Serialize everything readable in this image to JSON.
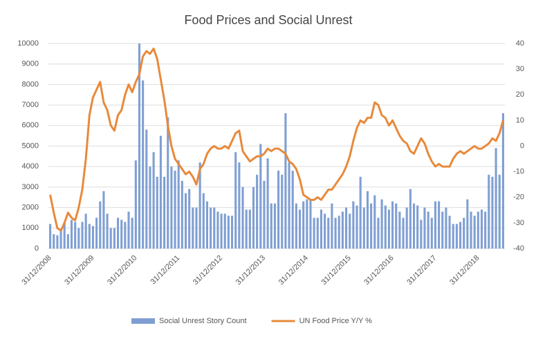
{
  "chart_data": {
    "type": "combo",
    "title": "Food Prices and Social Unrest",
    "categories": [
      "31/12/2008",
      null,
      null,
      null,
      null,
      null,
      null,
      null,
      null,
      null,
      null,
      null,
      "31/12/2009",
      null,
      null,
      null,
      null,
      null,
      null,
      null,
      null,
      null,
      null,
      null,
      "31/12/2010",
      null,
      null,
      null,
      null,
      null,
      null,
      null,
      null,
      null,
      null,
      null,
      "31/12/2011",
      null,
      null,
      null,
      null,
      null,
      null,
      null,
      null,
      null,
      null,
      null,
      "31/12/2012",
      null,
      null,
      null,
      null,
      null,
      null,
      null,
      null,
      null,
      null,
      null,
      "31/12/2013",
      null,
      null,
      null,
      null,
      null,
      null,
      null,
      null,
      null,
      null,
      null,
      "31/12/2014",
      null,
      null,
      null,
      null,
      null,
      null,
      null,
      null,
      null,
      null,
      null,
      "31/12/2015",
      null,
      null,
      null,
      null,
      null,
      null,
      null,
      null,
      null,
      null,
      null,
      "31/12/2016",
      null,
      null,
      null,
      null,
      null,
      null,
      null,
      null,
      null,
      null,
      null,
      "31/12/2017",
      null,
      null,
      null,
      null,
      null,
      null,
      null,
      null,
      null,
      null,
      null,
      "31/12/2018",
      null,
      null,
      null,
      null,
      null,
      null,
      null
    ],
    "series": [
      {
        "name": "Social Unrest Story Count",
        "type": "bar",
        "color": "#7f9fd3",
        "values": [
          1200,
          700,
          650,
          900,
          1300,
          700,
          1400,
          1300,
          1000,
          1300,
          1700,
          1200,
          1100,
          1500,
          2300,
          2800,
          1700,
          1000,
          1000,
          1500,
          1400,
          1300,
          1800,
          1500,
          4300,
          10000,
          8200,
          5800,
          4000,
          4700,
          3500,
          5500,
          3500,
          6400,
          4000,
          3800,
          4300,
          3300,
          2700,
          2900,
          2000,
          2000,
          4200,
          2700,
          2300,
          2000,
          2000,
          1800,
          1700,
          1700,
          1600,
          1600,
          4700,
          4200,
          3000,
          1900,
          1900,
          3000,
          3600,
          5100,
          3300,
          4400,
          2200,
          2200,
          3800,
          3600,
          6600,
          4200,
          3800,
          2200,
          1900,
          2300,
          2400,
          2400,
          1500,
          1500,
          1900,
          1700,
          1500,
          2200,
          1500,
          1600,
          1800,
          2000,
          1700,
          2300,
          2100,
          3500,
          2000,
          2800,
          2200,
          2600,
          1500,
          2400,
          2100,
          1900,
          2300,
          2200,
          1800,
          1500,
          2000,
          2900,
          2200,
          2100,
          1400,
          2000,
          1800,
          1500,
          2300,
          2300,
          1800,
          2000,
          1600,
          1200,
          1200,
          1300,
          1500,
          2400,
          1800,
          1600,
          1800,
          1900,
          1800,
          3600,
          3500,
          4900,
          3600,
          6600
        ]
      },
      {
        "name": "UN Food Price Y/Y %",
        "type": "line",
        "axis": "y2",
        "color": "#e8893a",
        "values": [
          -19,
          -26,
          -32,
          -33,
          -30,
          -26,
          -28,
          -29,
          -24,
          -17,
          -5,
          12,
          19,
          22,
          25,
          17,
          14,
          8,
          6,
          12,
          14,
          20,
          24,
          21,
          25,
          28,
          35,
          37,
          36,
          38,
          34,
          26,
          18,
          8,
          0,
          -5,
          -7,
          -9,
          -11,
          -10,
          -12,
          -15,
          -9,
          -7,
          -3,
          -1,
          0,
          -1,
          -1,
          0,
          -1,
          2,
          5,
          6,
          -2,
          -4,
          -6,
          -5,
          -4,
          -4,
          -3,
          -1,
          -2,
          -1,
          -1,
          -2,
          -3,
          -6,
          -7,
          -9,
          -13,
          -19,
          -20,
          -21,
          -21,
          -20,
          -21,
          -19,
          -17,
          -17,
          -15,
          -13,
          -11,
          -8,
          -4,
          2,
          7,
          10,
          9,
          11,
          11,
          17,
          16,
          12,
          11,
          8,
          10,
          7,
          4,
          2,
          1,
          -2,
          -3,
          0,
          3,
          1,
          -3,
          -6,
          -8,
          -7,
          -8,
          -8,
          -8,
          -5,
          -3,
          -2,
          -3,
          -2,
          -1,
          0,
          -1,
          -1,
          0,
          1,
          3,
          2,
          5,
          10
        ]
      }
    ],
    "ylim": [
      0,
      10000
    ],
    "yticks": [
      0,
      1000,
      2000,
      3000,
      4000,
      5000,
      6000,
      7000,
      8000,
      9000,
      10000
    ],
    "y2lim": [
      -40,
      40
    ],
    "y2ticks": [
      -40,
      -30,
      -20,
      -10,
      0,
      10,
      20,
      30,
      40
    ],
    "grid": true,
    "legend": "bottom"
  }
}
